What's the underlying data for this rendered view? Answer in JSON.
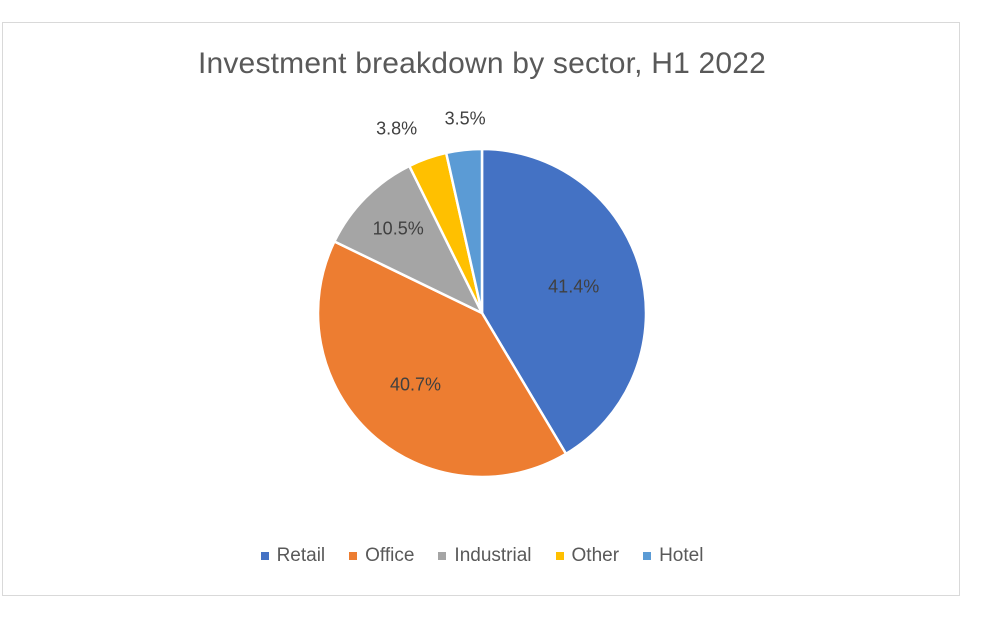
{
  "chart_data": {
    "type": "pie",
    "title": "Investment breakdown by sector, H1 2022",
    "categories": [
      "Retail",
      "Office",
      "Industrial",
      "Other",
      "Hotel"
    ],
    "values": [
      41.4,
      40.7,
      10.5,
      3.8,
      3.5
    ],
    "labels": [
      "41.4%",
      "40.7%",
      "10.5%",
      "3.8%",
      "3.5%"
    ],
    "colors": [
      "#4472C4",
      "#ED7D31",
      "#A5A5A5",
      "#FFC000",
      "#5B9BD5"
    ],
    "legend_position": "bottom",
    "start_angle": "top",
    "direction": "clockwise"
  }
}
